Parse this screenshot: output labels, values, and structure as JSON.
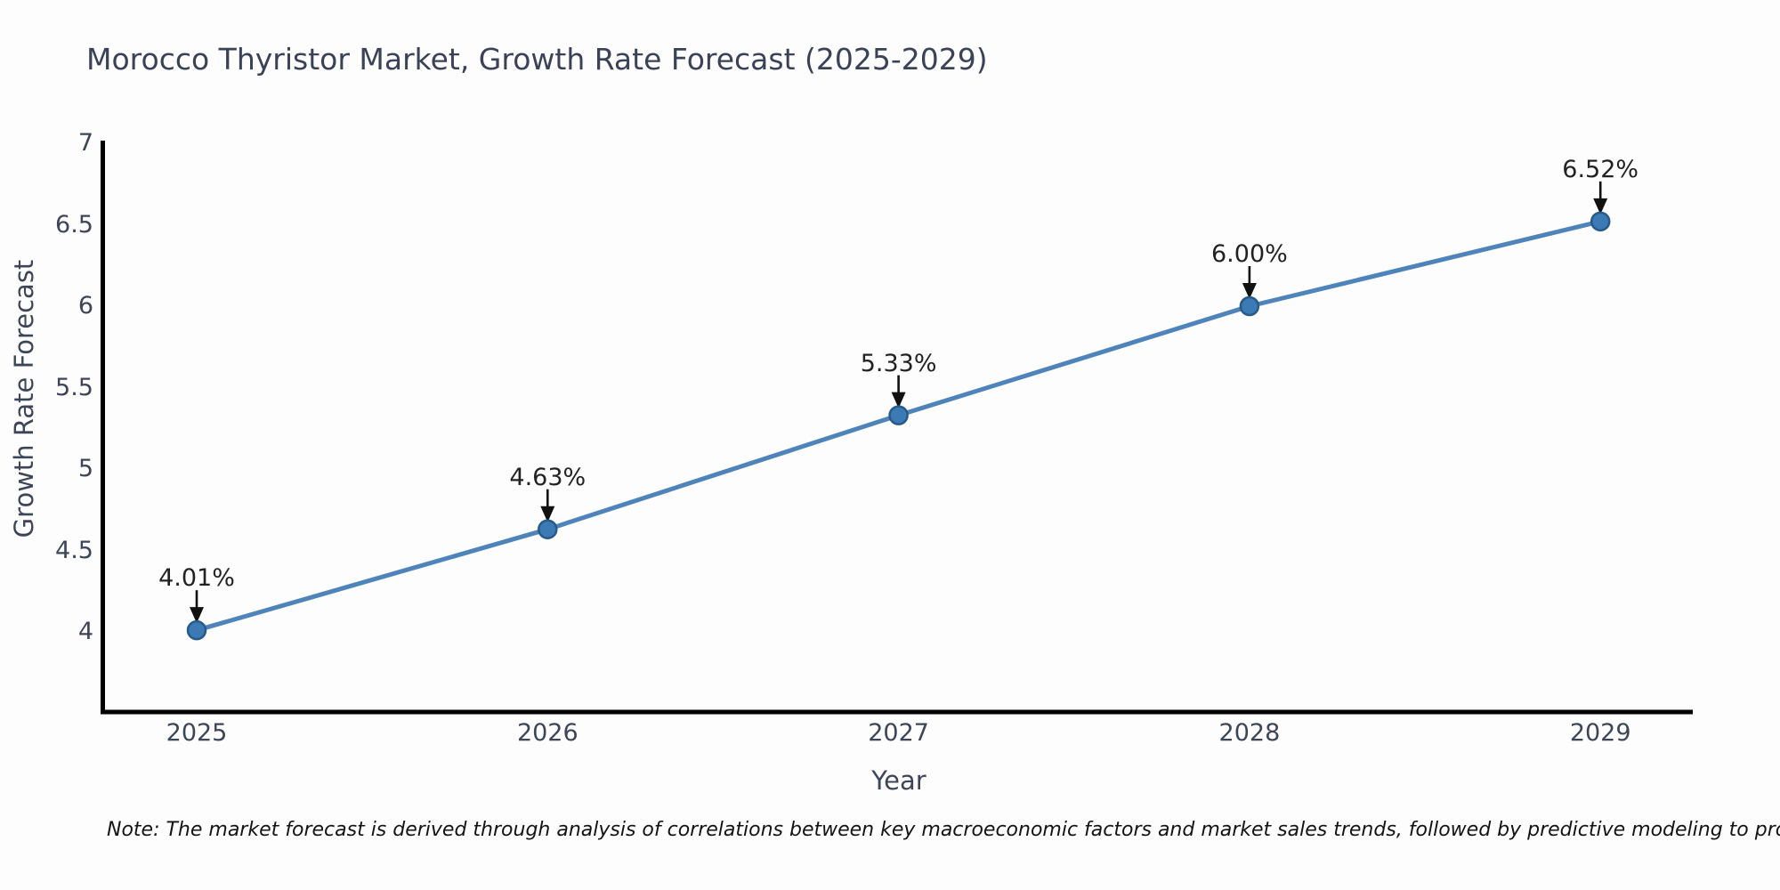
{
  "title": "Morocco Thyristor Market, Growth Rate Forecast (2025-2029)",
  "footnote": "Note: The market forecast is derived through analysis of correlations between key macroeconomic factors and market sales trends, followed by predictive modeling to project future sales",
  "chart_data": {
    "type": "line",
    "title": "Morocco Thyristor Market, Growth Rate Forecast (2025-2029)",
    "x": [
      2025,
      2026,
      2027,
      2028,
      2029
    ],
    "xtick_labels": [
      "2025",
      "2026",
      "2027",
      "2028",
      "2029"
    ],
    "series": [
      {
        "name": "Growth Rate Forecast",
        "values": [
          4.01,
          4.63,
          5.33,
          6.0,
          6.52
        ],
        "point_labels": [
          "4.01%",
          "4.63%",
          "5.33%",
          "6.00%",
          "6.52%"
        ]
      }
    ],
    "xlabel": "Year",
    "ylabel": "Growth Rate Forecast",
    "yticks": [
      7,
      6.5,
      6,
      5.5,
      5,
      4.5,
      4
    ],
    "ytick_labels": [
      "7",
      "6.5",
      "6",
      "5.5",
      "5",
      "4.5",
      "4"
    ],
    "ylim": [
      3.5,
      7
    ],
    "xlim": [
      2024.73,
      2029.26
    ],
    "grid": false,
    "legend_position": "none",
    "annotations_have_arrows": true,
    "colors": {
      "line": "#4e84ba",
      "marker_fill": "#3c7ab6",
      "marker_edge": "#275a86",
      "annotation_text": "#222222",
      "axis_line": "#000000",
      "label_text": "#3d4659",
      "title_text": "#3a4258"
    }
  }
}
